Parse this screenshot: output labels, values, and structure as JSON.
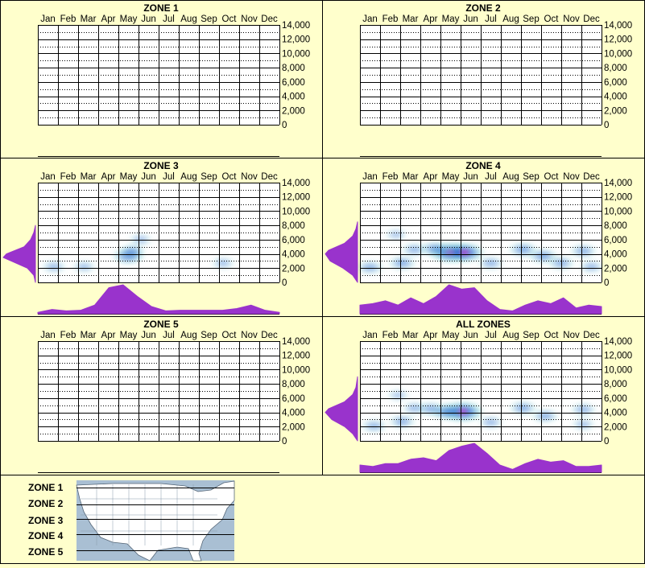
{
  "colors": {
    "background": "#ffffcc",
    "panel_border": "#000000",
    "marginal_fill": "#9933cc",
    "heat_low": "#66cccc",
    "heat_mid": "#1a66cc",
    "heat_high": "#cc33cc",
    "map_water": "#a9bfd3",
    "map_land": "#ffffff"
  },
  "months": [
    "Jan",
    "Feb",
    "Mar",
    "Apr",
    "May",
    "Jun",
    "Jul",
    "Aug",
    "Sep",
    "Oct",
    "Nov",
    "Dec"
  ],
  "y_ticks": [
    "14,000",
    "12,000",
    "10,000",
    "8,000",
    "6,000",
    "4,000",
    "2,000",
    "0"
  ],
  "chart_data": [
    {
      "type": "heatmap",
      "title": "ZONE 1",
      "x": "month",
      "ylim": [
        0,
        14000
      ],
      "has_data": false,
      "blobs": [],
      "y_marginal": [],
      "x_marginal": []
    },
    {
      "type": "heatmap",
      "title": "ZONE 2",
      "x": "month",
      "ylim": [
        0,
        14000
      ],
      "has_data": false,
      "blobs": [],
      "y_marginal": [],
      "x_marginal": []
    },
    {
      "type": "heatmap",
      "title": "ZONE 3",
      "x": "month",
      "ylim": [
        0,
        14000
      ],
      "has_data": true,
      "blobs": [
        {
          "month": 5.0,
          "elev": 3700,
          "weight": 0.55
        },
        {
          "month": 5.2,
          "elev": 4400,
          "weight": 0.25
        },
        {
          "month": 5.6,
          "elev": 6000,
          "weight": 0.15
        },
        {
          "month": 1.3,
          "elev": 2200,
          "weight": 0.2
        },
        {
          "month": 2.8,
          "elev": 2200,
          "weight": 0.15
        },
        {
          "month": 9.7,
          "elev": 2700,
          "weight": 0.15
        }
      ],
      "y_marginal": [
        {
          "elev": 0,
          "d": 0.0
        },
        {
          "elev": 1000,
          "d": 0.05
        },
        {
          "elev": 2000,
          "d": 0.25
        },
        {
          "elev": 3000,
          "d": 0.75
        },
        {
          "elev": 3500,
          "d": 1.0
        },
        {
          "elev": 4000,
          "d": 0.9
        },
        {
          "elev": 5000,
          "d": 0.35
        },
        {
          "elev": 6000,
          "d": 0.15
        },
        {
          "elev": 7000,
          "d": 0.05
        },
        {
          "elev": 8000,
          "d": 0.0
        }
      ],
      "x_marginal": [
        0.05,
        0.15,
        0.1,
        0.12,
        0.3,
        0.9,
        1.0,
        0.6,
        0.25,
        0.1,
        0.12,
        0.12,
        0.12,
        0.12,
        0.18,
        0.3,
        0.12,
        0.05
      ]
    },
    {
      "type": "heatmap",
      "title": "ZONE 4",
      "x": "month",
      "ylim": [
        0,
        14000
      ],
      "has_data": true,
      "blobs": [
        {
          "month": 5.0,
          "elev": 4200,
          "weight": 1.0
        },
        {
          "month": 5.7,
          "elev": 4200,
          "weight": 0.9
        },
        {
          "month": 4.2,
          "elev": 4700,
          "weight": 0.4
        },
        {
          "month": 2.6,
          "elev": 2700,
          "weight": 0.35
        },
        {
          "month": 1.0,
          "elev": 2100,
          "weight": 0.3
        },
        {
          "month": 3.2,
          "elev": 4600,
          "weight": 0.25
        },
        {
          "month": 8.6,
          "elev": 4600,
          "weight": 0.4
        },
        {
          "month": 9.6,
          "elev": 3700,
          "weight": 0.4
        },
        {
          "month": 10.5,
          "elev": 2700,
          "weight": 0.3
        },
        {
          "month": 11.6,
          "elev": 4400,
          "weight": 0.3
        },
        {
          "month": 7.0,
          "elev": 2700,
          "weight": 0.25
        },
        {
          "month": 2.3,
          "elev": 6700,
          "weight": 0.1
        },
        {
          "month": 12.0,
          "elev": 2200,
          "weight": 0.2
        }
      ],
      "y_marginal": [
        {
          "elev": 0,
          "d": 0.0
        },
        {
          "elev": 1000,
          "d": 0.15
        },
        {
          "elev": 2000,
          "d": 0.45
        },
        {
          "elev": 3000,
          "d": 0.85
        },
        {
          "elev": 4000,
          "d": 1.0
        },
        {
          "elev": 4500,
          "d": 0.9
        },
        {
          "elev": 5500,
          "d": 0.4
        },
        {
          "elev": 6500,
          "d": 0.15
        },
        {
          "elev": 7500,
          "d": 0.05
        },
        {
          "elev": 8500,
          "d": 0.0
        }
      ],
      "x_marginal": [
        0.3,
        0.35,
        0.45,
        0.3,
        0.55,
        0.35,
        0.6,
        1.0,
        0.85,
        0.9,
        0.45,
        0.15,
        0.1,
        0.3,
        0.45,
        0.35,
        0.55,
        0.2,
        0.3,
        0.25
      ]
    },
    {
      "type": "heatmap",
      "title": "ZONE 5",
      "x": "month",
      "ylim": [
        0,
        14000
      ],
      "has_data": false,
      "blobs": [],
      "y_marginal": [],
      "x_marginal": []
    },
    {
      "type": "heatmap",
      "title": "ALL ZONES",
      "x": "month",
      "ylim": [
        0,
        14000
      ],
      "has_data": true,
      "blobs": [
        {
          "month": 5.6,
          "elev": 4100,
          "weight": 1.0
        },
        {
          "month": 4.8,
          "elev": 4100,
          "weight": 0.55
        },
        {
          "month": 4.0,
          "elev": 4500,
          "weight": 0.3
        },
        {
          "month": 2.6,
          "elev": 2700,
          "weight": 0.3
        },
        {
          "month": 1.2,
          "elev": 2100,
          "weight": 0.25
        },
        {
          "month": 3.2,
          "elev": 4600,
          "weight": 0.2
        },
        {
          "month": 8.6,
          "elev": 4600,
          "weight": 0.35
        },
        {
          "month": 9.7,
          "elev": 3500,
          "weight": 0.3
        },
        {
          "month": 11.6,
          "elev": 4400,
          "weight": 0.25
        },
        {
          "month": 7.0,
          "elev": 2600,
          "weight": 0.2
        },
        {
          "month": 2.4,
          "elev": 6400,
          "weight": 0.08
        },
        {
          "month": 11.6,
          "elev": 2300,
          "weight": 0.15
        }
      ],
      "y_marginal": [
        {
          "elev": 0,
          "d": 0.0
        },
        {
          "elev": 1000,
          "d": 0.15
        },
        {
          "elev": 2000,
          "d": 0.4
        },
        {
          "elev": 3000,
          "d": 0.8
        },
        {
          "elev": 4000,
          "d": 1.0
        },
        {
          "elev": 4500,
          "d": 0.9
        },
        {
          "elev": 5500,
          "d": 0.4
        },
        {
          "elev": 6500,
          "d": 0.15
        },
        {
          "elev": 7500,
          "d": 0.05
        },
        {
          "elev": 9000,
          "d": 0.0
        }
      ],
      "x_marginal": [
        0.25,
        0.2,
        0.3,
        0.3,
        0.45,
        0.5,
        0.4,
        0.75,
        0.9,
        1.0,
        0.65,
        0.25,
        0.1,
        0.3,
        0.45,
        0.35,
        0.4,
        0.2,
        0.2,
        0.25
      ]
    }
  ],
  "legend": {
    "zones": [
      "ZONE 1",
      "ZONE 2",
      "ZONE 3",
      "ZONE 4",
      "ZONE 5"
    ]
  }
}
